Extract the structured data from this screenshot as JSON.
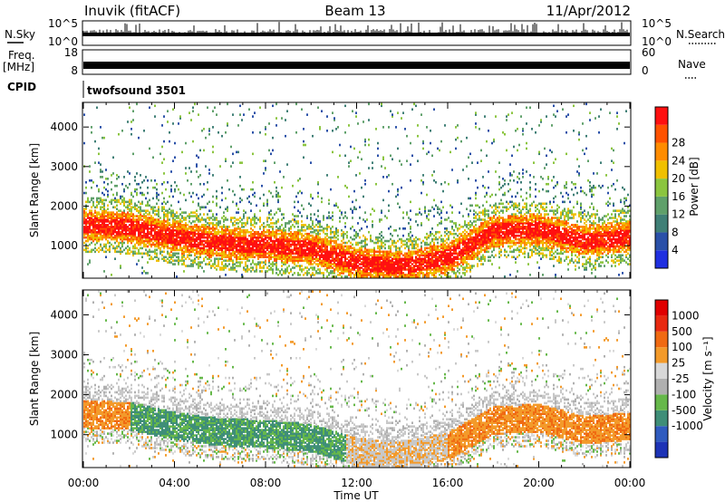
{
  "header": {
    "station": "Inuvik (fitACF)",
    "beam": "Beam 13",
    "date": "11/Apr/2012"
  },
  "summary_panels": {
    "nsky_label": "N.Sky",
    "nsearch_label": "N.Search",
    "nsky_ticks": [
      "10^5",
      "10^0"
    ],
    "nsearch_ticks": [
      "10^5",
      "10^0"
    ],
    "freq_label": "Freq.",
    "freq_unit": "[MHz]",
    "freq_ticks": [
      "18",
      "8"
    ],
    "nave_label": "Nave",
    "nave_ticks": [
      "60",
      "0"
    ],
    "cpid_label": "CPID",
    "cpid_value": "twofsound 3501"
  },
  "colors": {
    "power_scale": [
      "#1f2fe0",
      "#2a50a8",
      "#3f7f76",
      "#5fa06a",
      "#8bc53f",
      "#f0c000",
      "#ff8c00",
      "#ff5200",
      "#ff1010"
    ],
    "velocity_scale": [
      "#1d33b6",
      "#2f5bbf",
      "#3f8e78",
      "#66b84a",
      "#b0b0b0",
      "#d8d8d8",
      "#f39a2a",
      "#f06a12",
      "#e82a10",
      "#e00000"
    ],
    "grey_scatter": "#c8c8c8"
  },
  "chart_data": [
    {
      "type": "heatmap",
      "name": "power",
      "xlabel": "",
      "ylabel": "Slant Range [km]",
      "x_ticks": [
        "00:00",
        "04:00",
        "08:00",
        "12:00",
        "16:00",
        "20:00",
        "00:00"
      ],
      "x_range_hours": [
        0,
        24
      ],
      "ylim": [
        200,
        4600
      ],
      "y_ticks": [
        1000,
        2000,
        3000,
        4000
      ],
      "colorbar_label": "Power [dB]",
      "colorbar_ticks": [
        4,
        8,
        12,
        16,
        20,
        24,
        28
      ],
      "colorbar_range": [
        0,
        32
      ],
      "main_band_km": [
        [
          0,
          1500
        ],
        [
          2,
          1450
        ],
        [
          4,
          1200
        ],
        [
          6,
          1050
        ],
        [
          8,
          1000
        ],
        [
          10,
          900
        ],
        [
          12,
          550
        ],
        [
          14,
          450
        ],
        [
          16,
          700
        ],
        [
          18,
          1350
        ],
        [
          20,
          1400
        ],
        [
          22,
          1100
        ],
        [
          24,
          1200
        ]
      ]
    },
    {
      "type": "heatmap",
      "name": "velocity",
      "xlabel": "Time UT",
      "ylabel": "Slant Range [km]",
      "x_ticks": [
        "00:00",
        "04:00",
        "08:00",
        "12:00",
        "16:00",
        "20:00",
        "00:00"
      ],
      "x_range_hours": [
        0,
        24
      ],
      "ylim": [
        200,
        4600
      ],
      "y_ticks": [
        1000,
        2000,
        3000,
        4000
      ],
      "colorbar_label": "Velocity [m s⁻¹]",
      "colorbar_ticks": [
        1000,
        500,
        100,
        25,
        -25,
        -100,
        -500,
        -1000
      ]
    }
  ]
}
